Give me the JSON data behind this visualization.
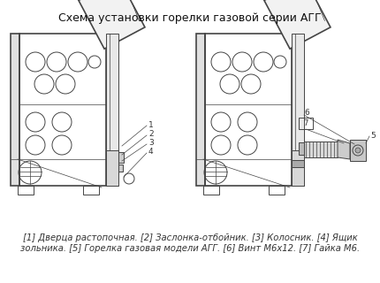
{
  "title": "Схема установки горелки газовой серии АГГ",
  "title_fontsize": 9.0,
  "caption_line1": "[1] Дверца растопочная. [2] Заслонка-отбойник. [3] Колосник. [4] Ящик",
  "caption_line2": "зольника. [5] Горелка газовая модели АГГ. [6] Винт М6х12. [7] Гайка М6.",
  "caption_fontsize": 7.2,
  "bg_color": "#ffffff",
  "line_color": "#444444",
  "fig_width": 4.3,
  "fig_height": 3.2,
  "dpi": 100
}
